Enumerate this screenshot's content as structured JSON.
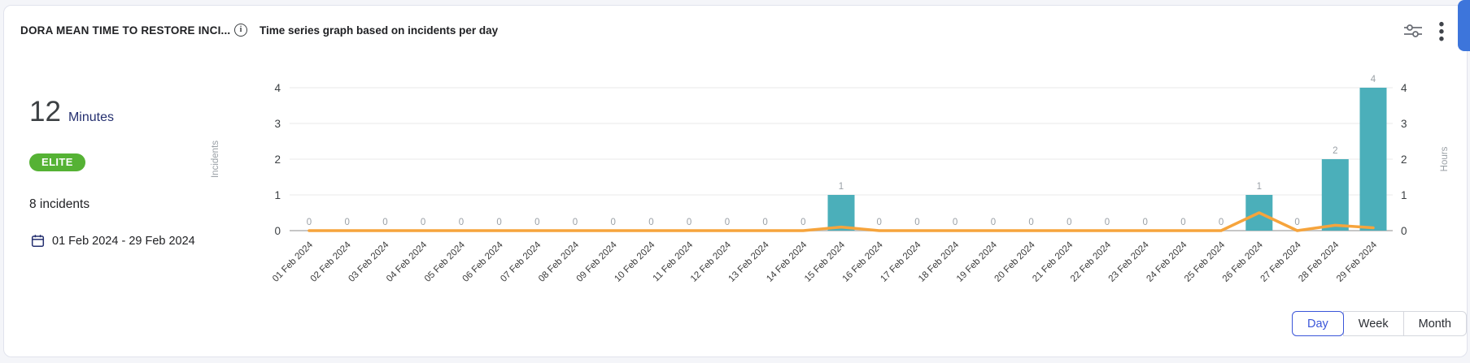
{
  "header": {
    "title": "DORA MEAN TIME TO RESTORE INCI...",
    "subtitle": "Time series graph based on incidents per day"
  },
  "summary": {
    "value": "12",
    "unit": "Minutes",
    "badge": "ELITE",
    "badge_color": "#55b234",
    "incident_count": "8 incidents",
    "date_range": "01 Feb 2024 - 29 Feb 2024"
  },
  "controls": {
    "granularity": [
      {
        "label": "Day",
        "selected": true
      },
      {
        "label": "Week",
        "selected": false
      },
      {
        "label": "Month",
        "selected": false
      }
    ]
  },
  "colors": {
    "bar_teal": "#4bafba",
    "line_orange": "#f6a43c",
    "accent_blue": "#3a55d9",
    "scrollbar_blue": "#3d75db",
    "badge_green": "#55b234",
    "navy_text": "#253070"
  },
  "chart_data": {
    "type": "bar",
    "x": [
      "01 Feb 2024",
      "02 Feb 2024",
      "03 Feb 2024",
      "04 Feb 2024",
      "05 Feb 2024",
      "06 Feb 2024",
      "07 Feb 2024",
      "08 Feb 2024",
      "09 Feb 2024",
      "10 Feb 2024",
      "11 Feb 2024",
      "12 Feb 2024",
      "13 Feb 2024",
      "14 Feb 2024",
      "15 Feb 2024",
      "16 Feb 2024",
      "17 Feb 2024",
      "18 Feb 2024",
      "19 Feb 2024",
      "20 Feb 2024",
      "21 Feb 2024",
      "22 Feb 2024",
      "23 Feb 2024",
      "24 Feb 2024",
      "25 Feb 2024",
      "26 Feb 2024",
      "27 Feb 2024",
      "28 Feb 2024",
      "29 Feb 2024"
    ],
    "series": [
      {
        "name": "Incidents",
        "type": "bar",
        "color": "#4bafba",
        "values": [
          0,
          0,
          0,
          0,
          0,
          0,
          0,
          0,
          0,
          0,
          0,
          0,
          0,
          0,
          1,
          0,
          0,
          0,
          0,
          0,
          0,
          0,
          0,
          0,
          0,
          1,
          0,
          2,
          4
        ]
      },
      {
        "name": "Hours",
        "type": "line",
        "color": "#f6a43c",
        "values": [
          0,
          0,
          0,
          0,
          0,
          0,
          0,
          0,
          0,
          0,
          0,
          0,
          0,
          0,
          0.1,
          0,
          0,
          0,
          0,
          0,
          0,
          0,
          0,
          0,
          0,
          0.5,
          0,
          0.15,
          0.08
        ]
      }
    ],
    "left_axis": {
      "label": "Incidents",
      "ticks": [
        0,
        1,
        2,
        3,
        4
      ]
    },
    "right_axis": {
      "label": "Hours",
      "ticks": [
        0,
        1,
        2,
        3,
        4
      ]
    },
    "ylim": [
      0,
      4
    ],
    "grid": true,
    "legend": "none"
  }
}
